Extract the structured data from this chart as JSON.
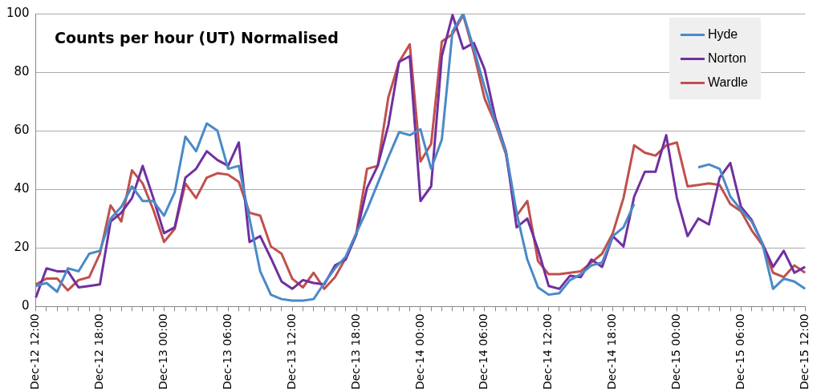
{
  "chart_data": {
    "type": "line",
    "title": "Counts per hour (UT) Normalised",
    "categories": [
      "Dec-12 12:00",
      null,
      null,
      null,
      null,
      null,
      "Dec-12 18:00",
      null,
      null,
      null,
      null,
      null,
      "Dec-13 00:00",
      null,
      null,
      null,
      null,
      null,
      "Dec-13 06:00",
      null,
      null,
      null,
      null,
      null,
      "Dec-13 12:00",
      null,
      null,
      null,
      null,
      null,
      "Dec-13 18:00",
      null,
      null,
      null,
      null,
      null,
      "Dec-14 00:00",
      null,
      null,
      null,
      null,
      null,
      "Dec-14 06:00",
      null,
      null,
      null,
      null,
      null,
      "Dec-14 12:00",
      null,
      null,
      null,
      null,
      null,
      "Dec-14 18:00",
      null,
      null,
      null,
      null,
      null,
      "Dec-15 00:00",
      null,
      null,
      null,
      null,
      null,
      "Dec-15 06:00",
      null,
      null,
      null,
      null,
      null,
      "Dec-15 12:00"
    ],
    "series": [
      {
        "name": "Hyde",
        "color": "#4a8ac8",
        "values": [
          7,
          8,
          5,
          13,
          12,
          18,
          19,
          30,
          34,
          41,
          36,
          36,
          31,
          39,
          58,
          53,
          62.5,
          60,
          47,
          48,
          30,
          12,
          4,
          2.5,
          2,
          2,
          2.5,
          8,
          13,
          17,
          25,
          33,
          42,
          51,
          59.5,
          58.5,
          60.5,
          47,
          57,
          94,
          100,
          88,
          75,
          63,
          53,
          32,
          16,
          6.5,
          4,
          4.5,
          9,
          11,
          14,
          15,
          24,
          27,
          35,
          null,
          null,
          null,
          null,
          null,
          47.5,
          48.5,
          47,
          37.5,
          33,
          29,
          21.5,
          6,
          9.5,
          8.5,
          6
        ]
      },
      {
        "name": "Norton",
        "color": "#7030a0",
        "values": [
          3,
          13,
          12,
          12,
          6.5,
          7,
          7.5,
          29,
          32,
          37,
          48,
          37,
          25,
          27,
          44,
          47,
          53,
          50,
          48,
          56,
          22,
          24,
          16.5,
          8.5,
          6,
          9,
          8,
          7.5,
          14,
          16,
          24.5,
          40.5,
          48,
          62,
          83.5,
          85.5,
          36,
          41,
          85.5,
          99.5,
          88,
          90,
          81,
          64.5,
          53,
          27,
          30,
          19.5,
          7,
          6,
          10.5,
          10,
          16,
          13.5,
          24,
          20.5,
          37.5,
          46,
          46,
          58.5,
          37,
          24,
          30,
          28,
          44,
          49,
          34,
          29.5,
          21.5,
          13.5,
          19,
          11.5,
          13.5
        ]
      },
      {
        "name": "Wardle",
        "color": "#c0504d",
        "values": [
          7.5,
          9.5,
          9.5,
          5.5,
          9,
          10,
          18,
          34.5,
          29,
          46.5,
          42,
          33,
          22,
          26.5,
          42,
          37,
          44,
          45.5,
          45,
          42.5,
          32,
          31,
          20.5,
          18,
          9.5,
          6.5,
          11.5,
          6,
          10,
          16.5,
          25,
          47,
          48,
          71.5,
          83.5,
          89.5,
          49.5,
          55.5,
          90.5,
          93,
          99.5,
          86.5,
          71,
          62.5,
          52,
          31,
          36,
          15.5,
          11,
          11,
          11.5,
          12,
          15,
          18,
          25,
          37,
          55,
          52.5,
          51.5,
          55,
          56,
          41,
          41.5,
          42,
          41.5,
          35,
          32.5,
          26,
          21,
          11.5,
          10,
          14,
          11.5
        ]
      }
    ],
    "ylim": [
      0,
      100
    ],
    "yticks": [
      0,
      20,
      40,
      60,
      80,
      100
    ],
    "grid": "y",
    "legend": "top right",
    "marker": "none",
    "line_style": "solid"
  }
}
